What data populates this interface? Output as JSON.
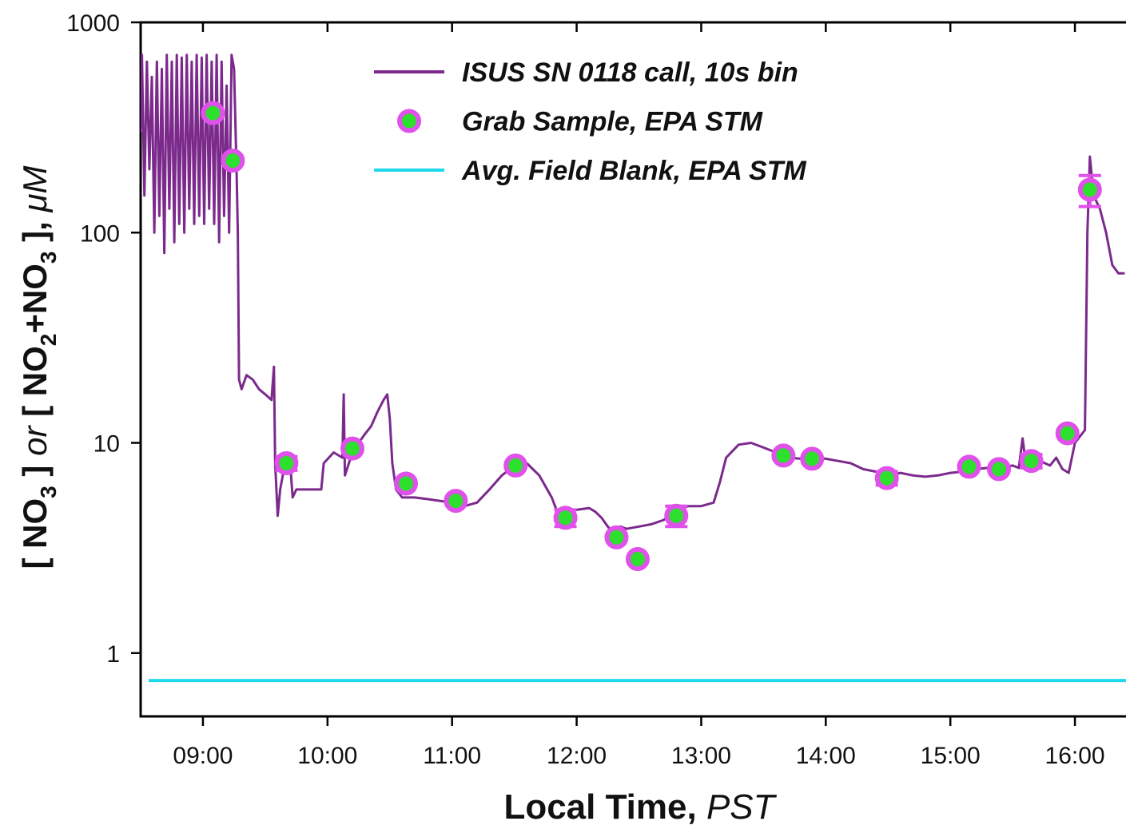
{
  "chart_data": {
    "type": "line",
    "xlabel": [
      "Local Time, ",
      "PST"
    ],
    "ylabel": [
      "[ NO",
      "3",
      " ] ",
      "or",
      " [ NO",
      "2",
      "+NO",
      "3",
      " ], ",
      "μM"
    ],
    "xlim": [
      8.5,
      16.41
    ],
    "xticks": [
      {
        "value": 9,
        "label": "09:00"
      },
      {
        "value": 10,
        "label": "10:00"
      },
      {
        "value": 11,
        "label": "11:00"
      },
      {
        "value": 12,
        "label": "12:00"
      },
      {
        "value": 13,
        "label": "13:00"
      },
      {
        "value": 14,
        "label": "14:00"
      },
      {
        "value": 15,
        "label": "15:00"
      },
      {
        "value": 16,
        "label": "16:00"
      }
    ],
    "ylim": [
      0.5,
      1000
    ],
    "yticks": [
      1,
      10,
      100,
      1000
    ],
    "yscale": "log",
    "legend": "top",
    "series": [
      {
        "name": "ISUS SN 0118 call, 10s bin",
        "color": "#7b2a8c",
        "x": [
          8.5,
          8.51,
          8.53,
          8.55,
          8.57,
          8.59,
          8.61,
          8.63,
          8.65,
          8.67,
          8.69,
          8.71,
          8.73,
          8.75,
          8.77,
          8.79,
          8.81,
          8.83,
          8.85,
          8.87,
          8.89,
          8.91,
          8.93,
          8.95,
          8.97,
          8.99,
          9.01,
          9.03,
          9.05,
          9.07,
          9.09,
          9.11,
          9.13,
          9.15,
          9.17,
          9.19,
          9.21,
          9.23,
          9.25,
          9.27,
          9.28,
          9.29,
          9.31,
          9.35,
          9.4,
          9.45,
          9.5,
          9.55,
          9.57,
          9.58,
          9.6,
          9.62,
          9.65,
          9.7,
          9.72,
          9.75,
          9.85,
          9.95,
          9.97,
          10.05,
          10.12,
          10.13,
          10.14,
          10.2,
          10.25,
          10.3,
          10.35,
          10.4,
          10.45,
          10.48,
          10.5,
          10.52,
          10.55,
          10.6,
          10.7,
          10.8,
          10.9,
          11.0,
          11.1,
          11.2,
          11.3,
          11.4,
          11.5,
          11.6,
          11.7,
          11.8,
          11.85,
          11.9,
          12.0,
          12.1,
          12.15,
          12.2,
          12.25,
          12.3,
          12.35,
          12.4,
          12.5,
          12.6,
          12.7,
          12.8,
          12.9,
          13.0,
          13.1,
          13.15,
          13.2,
          13.3,
          13.4,
          13.5,
          13.6,
          13.7,
          13.8,
          13.9,
          14.0,
          14.1,
          14.2,
          14.3,
          14.4,
          14.5,
          14.6,
          14.7,
          14.8,
          14.9,
          15.0,
          15.1,
          15.2,
          15.3,
          15.4,
          15.5,
          15.55,
          15.58,
          15.6,
          15.7,
          15.8,
          15.85,
          15.9,
          15.95,
          16.0,
          16.08,
          16.1,
          16.12,
          16.15,
          16.2,
          16.25,
          16.3,
          16.35,
          16.4
        ],
        "values": [
          300,
          700,
          150,
          650,
          200,
          550,
          100,
          650,
          120,
          600,
          80,
          700,
          130,
          650,
          90,
          700,
          110,
          680,
          100,
          700,
          130,
          650,
          110,
          700,
          120,
          680,
          110,
          700,
          130,
          650,
          110,
          700,
          90,
          650,
          120,
          500,
          100,
          700,
          600,
          200,
          100,
          20,
          18,
          21,
          20,
          18,
          17,
          16,
          23,
          8,
          4.5,
          6,
          7.5,
          8,
          5.5,
          6,
          6,
          6,
          8,
          9,
          8.5,
          17,
          7,
          9,
          10,
          11,
          12,
          14,
          16,
          17,
          13,
          8,
          6,
          5.5,
          5.5,
          5.4,
          5.3,
          5.2,
          5.0,
          5.2,
          6.0,
          7.0,
          7.8,
          8.0,
          7.0,
          5.5,
          4.6,
          4.7,
          4.8,
          4.9,
          4.7,
          4.4,
          4.0,
          3.7,
          4.0,
          3.9,
          4.0,
          4.1,
          4.3,
          4.8,
          5.0,
          5.0,
          5.2,
          6.5,
          8.5,
          9.8,
          10.0,
          9.5,
          9.0,
          8.5,
          8.4,
          8.5,
          8.4,
          8.2,
          8.0,
          7.5,
          7.3,
          7.0,
          7.2,
          7.0,
          6.9,
          7.0,
          7.2,
          7.3,
          7.5,
          7.6,
          7.6,
          7.8,
          7.6,
          10.5,
          8.5,
          8.3,
          7.8,
          8.5,
          7.5,
          7.2,
          10.0,
          11.5,
          100,
          230,
          150,
          130,
          100,
          70,
          64,
          64
        ]
      },
      {
        "name": "Grab Sample, EPA STM",
        "color": "#e050ea",
        "marker_face": "#2de02d",
        "x": [
          9.08,
          9.24,
          9.67,
          10.2,
          10.63,
          11.03,
          11.51,
          11.91,
          12.32,
          12.49,
          12.8,
          13.66,
          13.89,
          14.49,
          15.15,
          15.39,
          15.65,
          15.94,
          16.12
        ],
        "values": [
          370,
          220,
          8.0,
          9.4,
          6.4,
          5.3,
          7.8,
          4.4,
          3.55,
          2.8,
          4.5,
          8.7,
          8.4,
          6.8,
          7.7,
          7.5,
          8.2,
          11.1,
          160
        ],
        "errors": [
          null,
          null,
          0.6,
          null,
          null,
          null,
          null,
          0.4,
          null,
          null,
          0.5,
          null,
          null,
          0.5,
          null,
          null,
          0.6,
          null,
          27
        ]
      },
      {
        "name": "Avg. Field Blank, EPA STM",
        "color": "#1fd8ee",
        "value": 0.74
      }
    ]
  }
}
